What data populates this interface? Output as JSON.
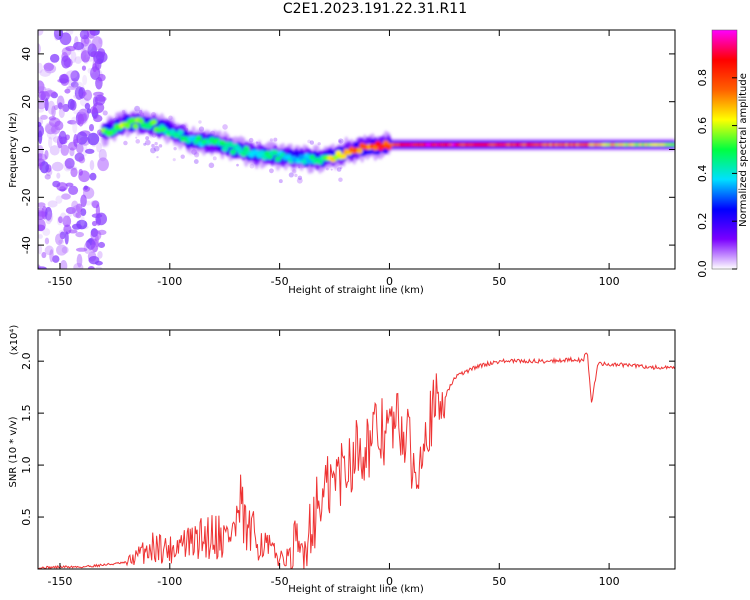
{
  "title": "C2E1.2023.191.22.31.R11",
  "colorbar_label": "Normalized spectral amplitude",
  "colorbar_ticks": [
    "0.0",
    "0.2",
    "0.4",
    "0.6",
    "0.8"
  ],
  "colorbar_colors": [
    "#ffffff",
    "#7a00ff",
    "#0000ff",
    "#00e0ff",
    "#00ff40",
    "#ffff00",
    "#ff6000",
    "#ff0000",
    "#ff00ff"
  ],
  "chart_data": [
    {
      "type": "heatmap",
      "xlabel": "Height of straight line (km)",
      "ylabel": "Frequency (Hz)",
      "xlim": [
        -160,
        130
      ],
      "ylim": [
        -50,
        50
      ],
      "xticks": [
        -150,
        -100,
        -50,
        0,
        50,
        100
      ],
      "xtick_labels": [
        "-150",
        "-100",
        "-50",
        "0",
        "50",
        "100"
      ],
      "yticks": [
        -40,
        -20,
        0,
        20,
        40
      ],
      "ytick_labels": [
        "-40",
        "-20",
        "0",
        "20",
        "40"
      ],
      "ridge": {
        "x": [
          -130,
          -120,
          -110,
          -100,
          -90,
          -80,
          -70,
          -60,
          -50,
          -40,
          -30,
          -25,
          -20,
          -10,
          0,
          10,
          20,
          40,
          60,
          80,
          90,
          100,
          130
        ],
        "y": [
          7,
          11,
          11,
          8,
          4,
          3,
          0,
          -2,
          -3,
          -4,
          -4,
          -3,
          -1,
          1,
          2,
          2,
          2,
          2,
          2,
          2,
          2,
          2,
          2
        ],
        "amplitude": [
          0.55,
          0.6,
          0.55,
          0.5,
          0.45,
          0.5,
          0.45,
          0.45,
          0.45,
          0.4,
          0.5,
          0.7,
          0.75,
          0.85,
          0.9,
          0.95,
          0.95,
          0.95,
          0.9,
          0.85,
          0.8,
          0.7,
          0.6
        ]
      },
      "noise_region_x": [
        -160,
        -130
      ]
    },
    {
      "type": "line",
      "xlabel": "Height of straight line (km)",
      "ylabel": "SNR (10 * v/v)",
      "y_scale_label": "(x10⁴)",
      "xlim": [
        -160,
        130
      ],
      "ylim": [
        0,
        2.3
      ],
      "xticks": [
        -150,
        -100,
        -50,
        0,
        50,
        100
      ],
      "xtick_labels": [
        "-150",
        "-100",
        "-50",
        "0",
        "50",
        "100"
      ],
      "yticks": [
        0.5,
        1.0,
        1.5,
        2.0
      ],
      "ytick_labels": [
        "0.5",
        "1.0",
        "1.5",
        "2.0"
      ],
      "color": "#ee3333",
      "series": [
        {
          "x": [
            -160,
            -150,
            -140,
            -130,
            -120,
            -115,
            -110,
            -105,
            -100,
            -95,
            -90,
            -85,
            -80,
            -75,
            -70,
            -68,
            -65,
            -60,
            -55,
            -50,
            -45,
            -40,
            -35,
            -30,
            -25,
            -20,
            -15,
            -10,
            -5,
            0,
            5,
            10,
            12,
            15,
            20,
            25,
            30,
            40,
            50,
            60,
            70,
            80,
            85,
            88,
            90,
            92,
            95,
            100,
            110,
            120,
            130
          ],
          "y": [
            0.01,
            0.02,
            0.02,
            0.04,
            0.06,
            0.12,
            0.2,
            0.22,
            0.18,
            0.26,
            0.24,
            0.3,
            0.35,
            0.3,
            0.4,
            0.55,
            0.35,
            0.3,
            0.2,
            0.1,
            0.12,
            0.15,
            0.5,
            0.7,
            0.85,
            1.0,
            1.15,
            1.2,
            1.3,
            1.35,
            1.4,
            1.1,
            0.8,
            1.35,
            1.5,
            1.65,
            1.85,
            1.95,
            2.0,
            2.0,
            2.0,
            2.01,
            2.02,
            2.0,
            2.1,
            1.6,
            1.98,
            1.97,
            1.96,
            1.94,
            1.93
          ]
        }
      ]
    }
  ]
}
